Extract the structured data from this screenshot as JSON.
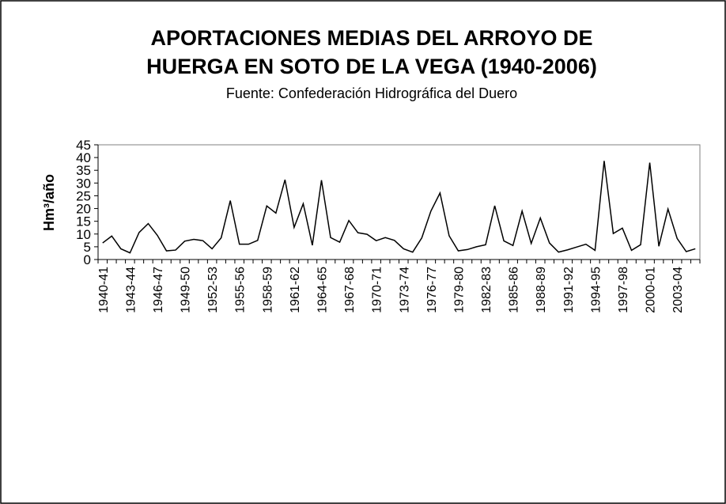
{
  "chart_data": {
    "type": "line",
    "title": "APORTACIONES MEDIAS DEL ARROYO DE",
    "title_line2": "HUERGA EN SOTO DE LA VEGA (1940-2006)",
    "subtitle": "Fuente: Confederación Hidrográfica del Duero",
    "y_label": "Hm³/año",
    "categories": [
      "1940-41",
      null,
      null,
      "1943-44",
      null,
      null,
      "1946-47",
      null,
      null,
      "1949-50",
      null,
      null,
      "1952-53",
      null,
      null,
      "1955-56",
      null,
      null,
      "1958-59",
      null,
      null,
      "1961-62",
      null,
      null,
      "1964-65",
      null,
      null,
      "1967-68",
      null,
      null,
      "1970-71",
      null,
      null,
      "1973-74",
      null,
      null,
      "1976-77",
      null,
      null,
      "1979-80",
      null,
      null,
      "1982-83",
      null,
      null,
      "1985-86",
      null,
      null,
      "1988-89",
      null,
      null,
      "1991-92",
      null,
      null,
      "1994-95",
      null,
      null,
      "1997-98",
      null,
      null,
      "2000-01",
      null,
      null,
      "2003-04",
      null,
      null
    ],
    "values": [
      6.5,
      9.2,
      4.2,
      2.6,
      10.6,
      14.1,
      9.5,
      3.4,
      3.7,
      7.2,
      7.9,
      7.4,
      4.2,
      8.5,
      23.1,
      6.0,
      6.0,
      7.5,
      21.0,
      18.2,
      31.3,
      12.6,
      21.9,
      5.6,
      31.1,
      8.6,
      6.8,
      15.3,
      10.5,
      9.9,
      7.4,
      8.6,
      7.5,
      4.2,
      2.9,
      8.5,
      19.0,
      26.1,
      9.3,
      3.4,
      3.9,
      5.0,
      5.8,
      21.1,
      7.3,
      5.5,
      19.0,
      6.3,
      16.3,
      6.5,
      2.9,
      3.8,
      4.9,
      6.0,
      3.6,
      38.7,
      10.2,
      12.3,
      3.6,
      5.8,
      38.0,
      5.2,
      19.8,
      8.3,
      3.1,
      4.2
    ],
    "color": "#000000",
    "ylim": [
      0,
      45
    ],
    "yticks": [
      0,
      5,
      10,
      15,
      20,
      25,
      30,
      35,
      40,
      45
    ],
    "grid": false
  }
}
